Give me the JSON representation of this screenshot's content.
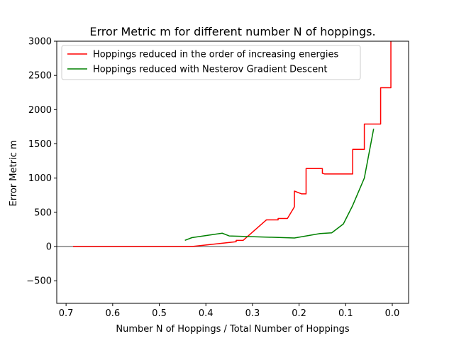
{
  "chart_data": {
    "type": "line",
    "title": "Error Metric m for different number N of hoppings.",
    "xlabel": "Number N of Hoppings / Total Number of Hoppings",
    "ylabel": "Error Metric m",
    "xlim": [
      0.72,
      -0.035
    ],
    "ylim": [
      -830,
      3000
    ],
    "x_inverted": true,
    "grid": false,
    "legend_position": "top-left",
    "x_ticks": [
      0.7,
      0.6,
      0.5,
      0.4,
      0.3,
      0.2,
      0.1,
      0.0
    ],
    "x_tick_labels": [
      "0.7",
      "0.6",
      "0.5",
      "0.4",
      "0.3",
      "0.2",
      "0.1",
      "0.0"
    ],
    "y_ticks": [
      -500,
      0,
      500,
      1000,
      1500,
      2000,
      2500,
      3000
    ],
    "y_tick_labels": [
      "−500",
      "0",
      "500",
      "1000",
      "1500",
      "2000",
      "2500",
      "3000"
    ],
    "reference_line": {
      "y": 0,
      "color": "#808080"
    },
    "series": [
      {
        "name": "Hoppings reduced in the order of increasing energies",
        "color": "#ff0000",
        "x": [
          0.685,
          0.43,
          0.335,
          0.335,
          0.32,
          0.27,
          0.245,
          0.245,
          0.225,
          0.21,
          0.21,
          0.195,
          0.185,
          0.185,
          0.15,
          0.15,
          0.145,
          0.085,
          0.085,
          0.06,
          0.06,
          0.025,
          0.025,
          0.003,
          0.003
        ],
        "y": [
          0,
          0,
          70,
          90,
          90,
          390,
          390,
          410,
          410,
          580,
          810,
          770,
          770,
          1140,
          1140,
          1070,
          1060,
          1060,
          1420,
          1420,
          1790,
          1790,
          2320,
          2320,
          3000
        ]
      },
      {
        "name": "Hoppings reduced with Nesterov Gradient Descent",
        "color": "#008000",
        "x": [
          0.445,
          0.43,
          0.365,
          0.35,
          0.21,
          0.155,
          0.13,
          0.105,
          0.085,
          0.06,
          0.04
        ],
        "y": [
          90,
          130,
          195,
          155,
          125,
          190,
          200,
          330,
          600,
          1000,
          1720
        ]
      }
    ]
  }
}
